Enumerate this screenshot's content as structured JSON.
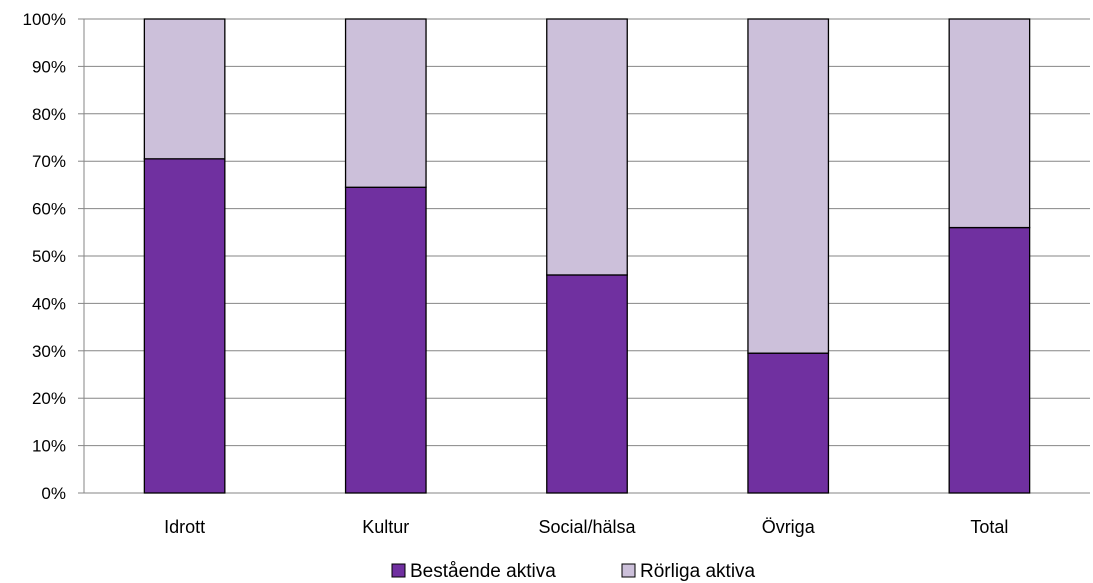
{
  "chart_data": {
    "type": "bar",
    "stacked": true,
    "categories": [
      "Idrott",
      "Kultur",
      "Social/hälsa",
      "Övriga",
      "Total"
    ],
    "series": [
      {
        "name": "Bestående aktiva",
        "values": [
          70.5,
          64.5,
          46,
          29.5,
          56
        ],
        "color": "#7030A0"
      },
      {
        "name": "Rörliga aktiva",
        "values": [
          29.5,
          35.5,
          54,
          70.5,
          44
        ],
        "color": "#CCC0DA"
      }
    ],
    "yticks": [
      "0%",
      "10%",
      "20%",
      "30%",
      "40%",
      "50%",
      "60%",
      "70%",
      "80%",
      "90%",
      "100%"
    ],
    "ylim": [
      0,
      100
    ],
    "grid": true,
    "legend_position": "bottom"
  }
}
